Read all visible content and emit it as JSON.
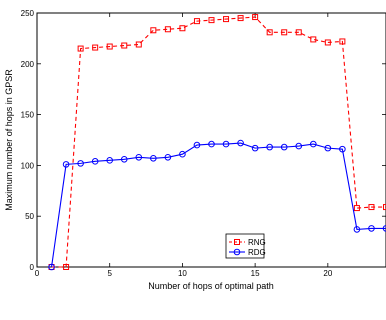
{
  "chart_data": {
    "type": "line",
    "title": "",
    "xlabel": "Number of hops of optimal path",
    "ylabel": "Maximum number of hops  in GPSR",
    "xlim": [
      0,
      24
    ],
    "ylim": [
      0,
      250
    ],
    "xticks": [
      0,
      5,
      10,
      15,
      20
    ],
    "yticks": [
      0,
      50,
      100,
      150,
      200,
      250
    ],
    "grid": false,
    "legend_position": "lower-center",
    "series": [
      {
        "name": "RNG",
        "color": "#ff0000",
        "line_style": "dashed",
        "marker": "square",
        "x": [
          1,
          2,
          3,
          4,
          5,
          6,
          7,
          8,
          9,
          10,
          11,
          12,
          13,
          14,
          15,
          16,
          17,
          18,
          19,
          20,
          21,
          22,
          23,
          24
        ],
        "y": [
          0,
          0,
          215,
          216,
          217,
          218,
          219,
          233,
          234,
          235,
          242,
          243,
          244,
          245,
          246,
          231,
          231,
          231,
          224,
          221,
          222,
          58,
          59,
          59
        ]
      },
      {
        "name": "RDG",
        "color": "#0000ff",
        "line_style": "solid",
        "marker": "circle",
        "x": [
          1,
          2,
          3,
          4,
          5,
          6,
          7,
          8,
          9,
          10,
          11,
          12,
          13,
          14,
          15,
          16,
          17,
          18,
          19,
          20,
          21,
          22,
          23,
          24
        ],
        "y": [
          0,
          101,
          102,
          104,
          105,
          106,
          108,
          107,
          108,
          111,
          120,
          121,
          121,
          122,
          117,
          118,
          118,
          119,
          121,
          117,
          116,
          37,
          38,
          38
        ]
      }
    ]
  }
}
